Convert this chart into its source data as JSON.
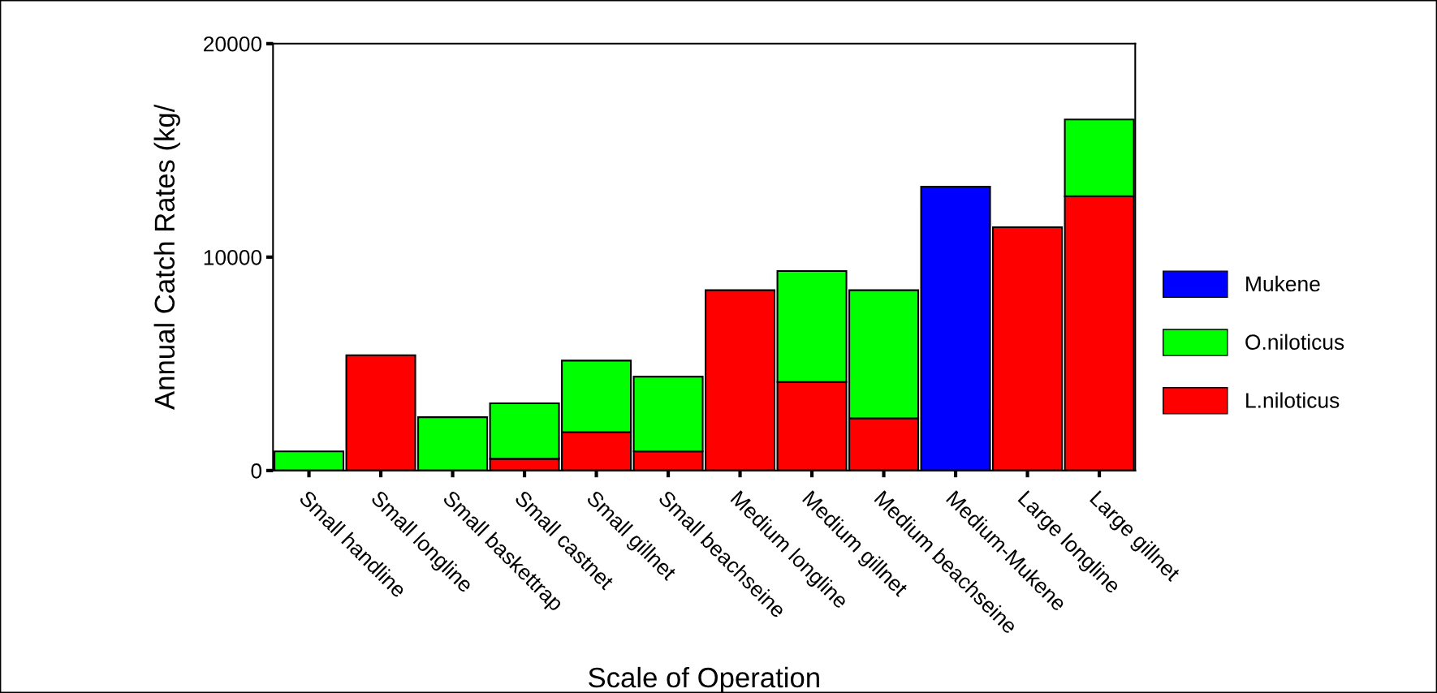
{
  "chart_data": {
    "type": "bar",
    "stacked": true,
    "xlabel": "Scale of Operation",
    "ylabel": "Annual Catch Rates (kg/",
    "categories": [
      "Small handline",
      "Small longline",
      "Small baskettrap",
      "Small castnet",
      "Small gillnet",
      "Small beachseine",
      "Medium longline",
      "Medium gillnet",
      "Medium beachseine",
      "Medium-Mukene",
      "Large longline",
      "Large gillnet"
    ],
    "series": [
      {
        "name": "L.niloticus",
        "color": "#ff0000",
        "values": [
          0,
          5400,
          0,
          550,
          1800,
          900,
          8450,
          4150,
          2450,
          0,
          11400,
          12850
        ]
      },
      {
        "name": "O.niloticus",
        "color": "#00ff00",
        "values": [
          900,
          0,
          2500,
          2600,
          3350,
          3500,
          0,
          5200,
          6000,
          0,
          0,
          3600
        ]
      },
      {
        "name": "Mukene",
        "color": "#0000ff",
        "values": [
          0,
          0,
          0,
          0,
          0,
          0,
          0,
          0,
          0,
          13300,
          0,
          0
        ]
      }
    ],
    "ylim": [
      0,
      20000
    ],
    "yticks": [
      0,
      10000,
      20000
    ],
    "grid": false,
    "legend": "right"
  }
}
